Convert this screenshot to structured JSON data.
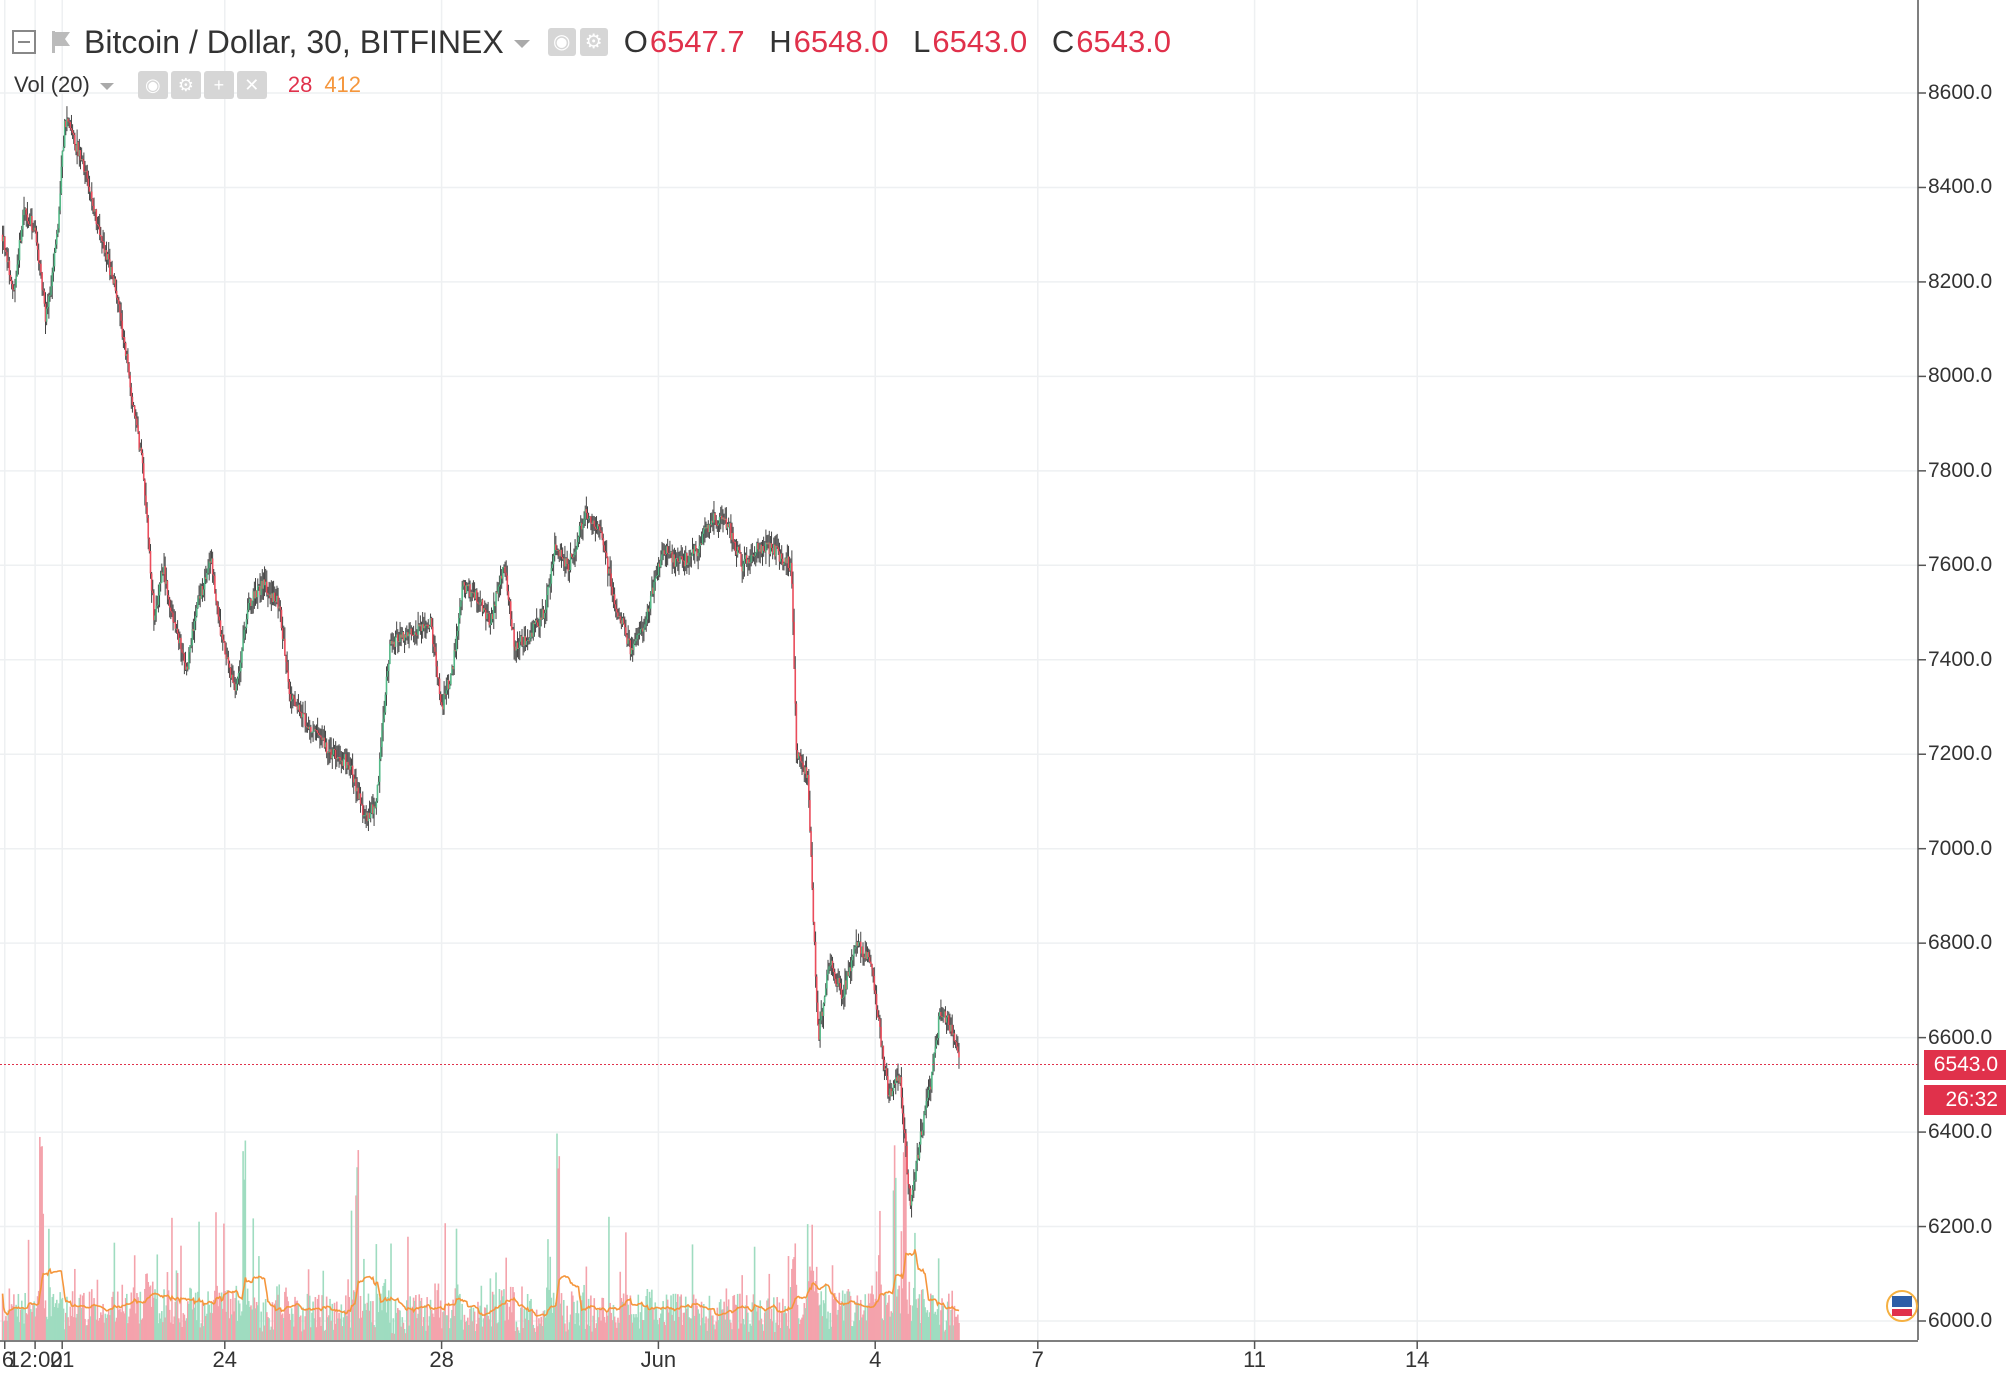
{
  "header": {
    "symbol_title": "Bitcoin / Dollar, 30, BITFINEX",
    "ohlc": {
      "o_label": "O",
      "o_value": "6547.7",
      "h_label": "H",
      "h_value": "6548.0",
      "l_label": "L",
      "l_value": "6543.0",
      "c_label": "C",
      "c_value": "6543.0"
    }
  },
  "volume_legend": {
    "label": "Vol (20)",
    "value_1": "28",
    "value_2": "412"
  },
  "last_price_badge": "6543.0",
  "countdown_badge": "26:32",
  "colors": {
    "up": "#53b987",
    "down": "#eb4d5c",
    "volume_ma": "#f5963c",
    "price_line": "#e0314b",
    "grid": "#eef0f2"
  },
  "chart_data": {
    "type": "candlestick",
    "title": "Bitcoin / Dollar, 30, BITFINEX",
    "y_axis": {
      "ticks": [
        "6000.0",
        "6200.0",
        "6400.0",
        "6600.0",
        "6800.0",
        "7000.0",
        "7200.0",
        "7400.0",
        "7600.0",
        "7800.0",
        "8000.0",
        "8200.0",
        "8400.0",
        "8600.0"
      ],
      "ylim": [
        6000,
        8600
      ],
      "position": "right"
    },
    "x_axis": {
      "tick_labels": [
        "6",
        "12:00",
        "21",
        "24",
        "28",
        "Jun",
        "4",
        "7",
        "11",
        "14"
      ],
      "tick_days": [
        -0.06,
        0.5,
        1,
        4,
        8,
        12,
        16,
        19,
        23,
        26
      ],
      "range_days": [
        -0.1,
        27.2
      ],
      "unit": "days from May 21"
    },
    "price_path": [
      [
        -0.1,
        8300
      ],
      [
        0.1,
        8180
      ],
      [
        0.3,
        8350
      ],
      [
        0.5,
        8310
      ],
      [
        0.7,
        8120
      ],
      [
        0.9,
        8290
      ],
      [
        1.05,
        8540
      ],
      [
        1.2,
        8510
      ],
      [
        1.45,
        8420
      ],
      [
        1.7,
        8300
      ],
      [
        2.0,
        8180
      ],
      [
        2.3,
        7950
      ],
      [
        2.5,
        7800
      ],
      [
        2.7,
        7480
      ],
      [
        2.85,
        7600
      ],
      [
        3.1,
        7460
      ],
      [
        3.3,
        7380
      ],
      [
        3.5,
        7520
      ],
      [
        3.75,
        7610
      ],
      [
        3.95,
        7440
      ],
      [
        4.2,
        7330
      ],
      [
        4.45,
        7520
      ],
      [
        4.7,
        7560
      ],
      [
        5.0,
        7520
      ],
      [
        5.2,
        7320
      ],
      [
        5.55,
        7260
      ],
      [
        5.9,
        7210
      ],
      [
        6.3,
        7180
      ],
      [
        6.6,
        7060
      ],
      [
        6.8,
        7100
      ],
      [
        7.05,
        7440
      ],
      [
        7.4,
        7450
      ],
      [
        7.8,
        7480
      ],
      [
        8.0,
        7300
      ],
      [
        8.2,
        7380
      ],
      [
        8.4,
        7560
      ],
      [
        8.7,
        7530
      ],
      [
        8.9,
        7480
      ],
      [
        9.15,
        7600
      ],
      [
        9.35,
        7430
      ],
      [
        9.6,
        7450
      ],
      [
        9.9,
        7500
      ],
      [
        10.1,
        7640
      ],
      [
        10.35,
        7600
      ],
      [
        10.65,
        7710
      ],
      [
        10.9,
        7680
      ],
      [
        11.2,
        7520
      ],
      [
        11.5,
        7420
      ],
      [
        11.75,
        7480
      ],
      [
        12.1,
        7640
      ],
      [
        12.35,
        7600
      ],
      [
        12.7,
        7630
      ],
      [
        13.0,
        7700
      ],
      [
        13.3,
        7680
      ],
      [
        13.55,
        7600
      ],
      [
        13.85,
        7640
      ],
      [
        14.15,
        7630
      ],
      [
        14.45,
        7600
      ],
      [
        14.55,
        7200
      ],
      [
        14.75,
        7160
      ],
      [
        14.95,
        6600
      ],
      [
        15.15,
        6760
      ],
      [
        15.4,
        6690
      ],
      [
        15.65,
        6800
      ],
      [
        15.9,
        6770
      ],
      [
        16.1,
        6600
      ],
      [
        16.25,
        6480
      ],
      [
        16.45,
        6520
      ],
      [
        16.65,
        6240
      ],
      [
        16.85,
        6400
      ],
      [
        17.05,
        6520
      ],
      [
        17.2,
        6660
      ],
      [
        17.4,
        6620
      ],
      [
        17.55,
        6543
      ]
    ],
    "volume": {
      "name": "Vol (20)",
      "ylim": [
        0,
        600
      ],
      "notable_spikes_days": [
        0.6,
        4.35,
        6.45,
        10.15,
        16.35,
        16.55
      ]
    },
    "last_price": 6543.0,
    "grid": true
  }
}
